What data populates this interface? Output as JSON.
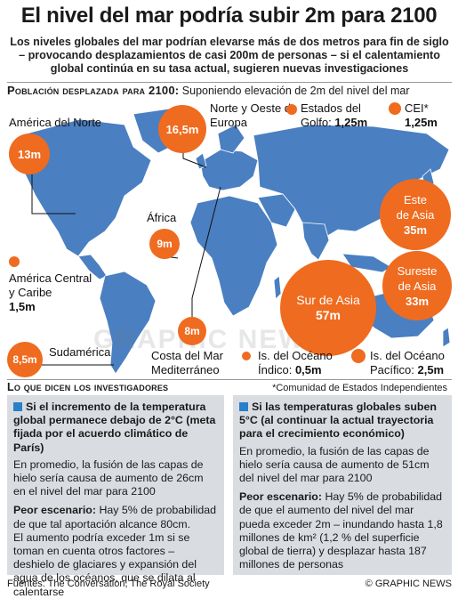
{
  "header": {
    "title": "El nivel del mar podría subir 2m para 2100",
    "subtitle": "Los niveles globales del mar podrían elevarse más de dos metros para fin de siglo – provocando desplazamientos de casi 200m de personas – si el calentamiento global continúa en su tasa actual, sugieren nuevas investigaciones"
  },
  "map_section": {
    "heading": "Población desplazada para 2100:",
    "heading_note": "Suponiendo elevación de 2m del nivel del mar"
  },
  "regions": {
    "north_america": {
      "label": "América del Norte",
      "value": "13m"
    },
    "nw_europe": {
      "label1": "Norte y Oeste de",
      "label2": "Europa",
      "value": "16,5m"
    },
    "gulf": {
      "label1": "Estados del",
      "label2": "Golfo:",
      "value": "1,25m"
    },
    "cis": {
      "label": "CEI*",
      "value": "1,25m"
    },
    "africa": {
      "label": "África",
      "value": "9m"
    },
    "east_asia": {
      "label1": "Este",
      "label2": "de Asia",
      "value": "35m"
    },
    "se_asia": {
      "label1": "Sureste",
      "label2": "de Asia",
      "value": "33m"
    },
    "south_asia": {
      "label": "Sur de Asia",
      "value": "57m"
    },
    "central_america": {
      "label1": "América Central",
      "label2": "y Caribe",
      "value": "1,5m"
    },
    "mediterranean": {
      "label1": "Costa del Mar",
      "label2": "Mediterráneo",
      "value": "8m"
    },
    "south_america": {
      "label": "Sudamérica",
      "value": "8,5m"
    },
    "indian_ocean": {
      "label1": "Is. del Océano",
      "label2": "Índico:",
      "value": "0,5m"
    },
    "pacific_ocean": {
      "label1": "Is. del Océano",
      "label2": "Pacífico:",
      "value": "2,5m"
    }
  },
  "watermark": "GRAPHIC NEWS",
  "researchers": {
    "heading": "Lo que dicen los investigadores",
    "footnote": "*Comunidad de Estados Independientes"
  },
  "scenario_left": {
    "heading": "Si el incremento de la temperatura global permanece debajo de 2°C (meta fijada por el acuerdo climático de París)",
    "body": "En promedio, la fusión de las capas de hielo sería causa de aumento de 26cm en el nivel del mar para 2100",
    "worst_label": "Peor escenario:",
    "worst_text": "Hay 5% de probabilidad de que tal aportación alcance 80cm.",
    "extra": "El aumento podría exceder 1m si se toman en cuenta otros factores – deshielo de glaciares y expansión del agua de los océanos, que se dilata al calentarse"
  },
  "scenario_right": {
    "heading": "Si las temperaturas globales suben 5°C (al continuar la actual trayectoria para el crecimiento económico)",
    "body": "En promedio, la fusión de las capas de hielo sería causa de aumento de 51cm del nivel del mar para 2100",
    "worst_label": "Peor escenario:",
    "worst_text": "Hay 5% de probabilidad de que el aumento del nivel del mar pueda exceder 2m – inundando hasta 1,8 millones de km² (1,2 % del superficie global de tierra) y desplazar hasta 187 millones de personas"
  },
  "footer": {
    "sources": "Fuentes: The Conversation, The Royal Society",
    "credit": "© GRAPHIC NEWS"
  },
  "colors": {
    "accent": "#ef6b1f",
    "land": "#4a7fc1",
    "box": "#d9dde2",
    "marker": "#2a7fc9"
  }
}
